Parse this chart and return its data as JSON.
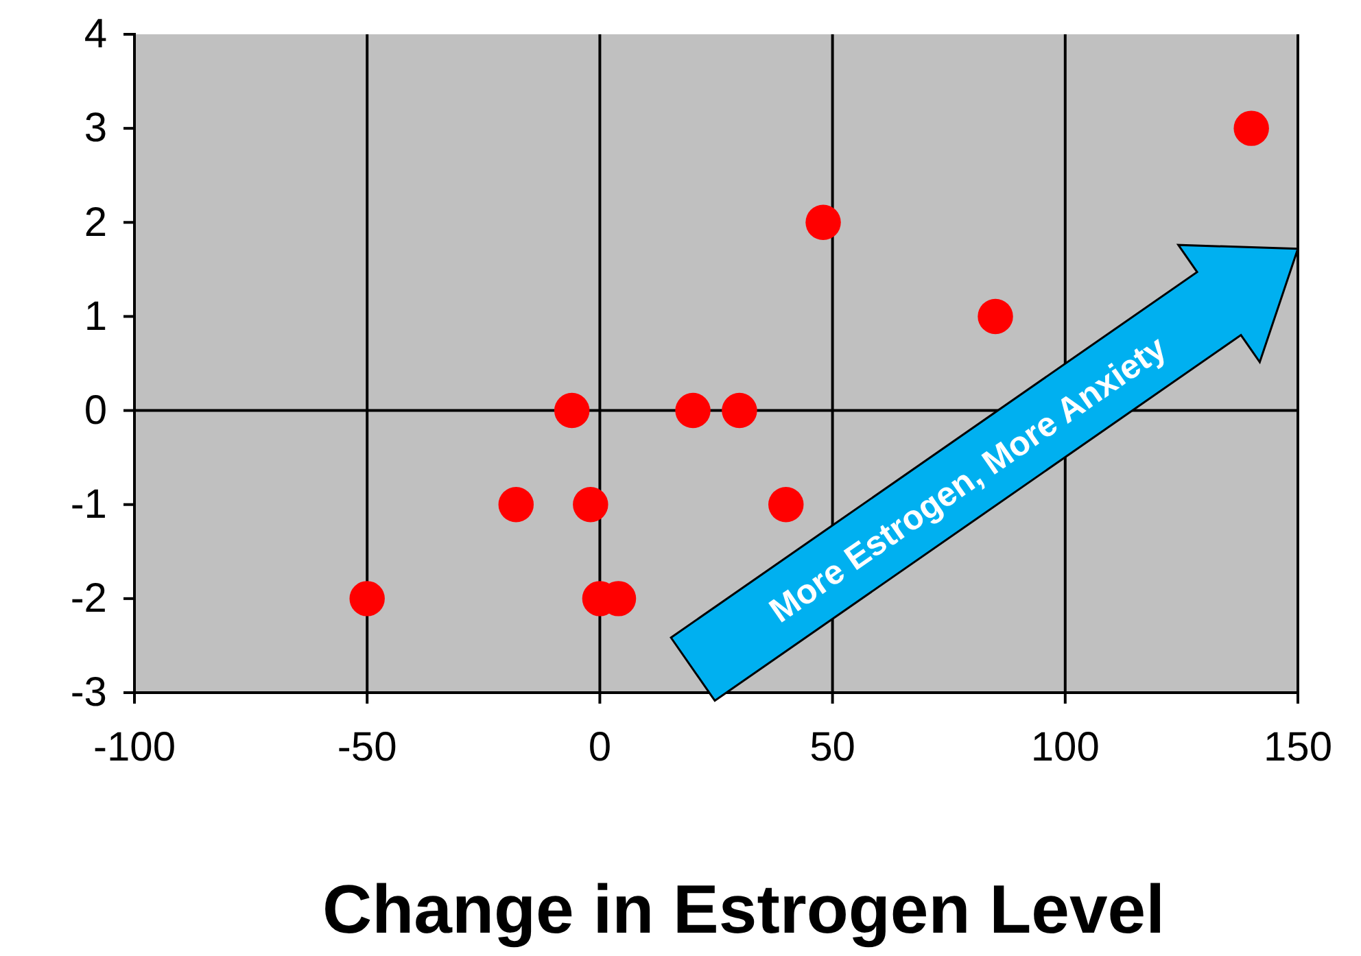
{
  "chart_data": {
    "type": "scatter",
    "xlabel": "Change in Estrogen Level",
    "x": [
      -50,
      -18,
      -6,
      -2,
      0,
      4,
      20,
      30,
      40,
      48,
      85,
      140
    ],
    "values": [
      -2,
      -1,
      0,
      -1,
      -2,
      -2,
      0,
      0,
      -1,
      2,
      1,
      3
    ],
    "color": "#ff0000",
    "marker": "circle",
    "xlim": [
      -100,
      150
    ],
    "xticks": [
      -100,
      -50,
      0,
      50,
      100,
      150
    ],
    "ylim": [
      -3,
      4
    ],
    "yticks": [
      -3,
      -2,
      -1,
      0,
      1,
      2,
      3,
      4
    ],
    "grid": "x",
    "ref_lines": [
      {
        "axis": "y",
        "value": 0,
        "color": "#000000"
      }
    ],
    "annotations": [
      "More Estrogen, More Anxiety"
    ]
  }
}
